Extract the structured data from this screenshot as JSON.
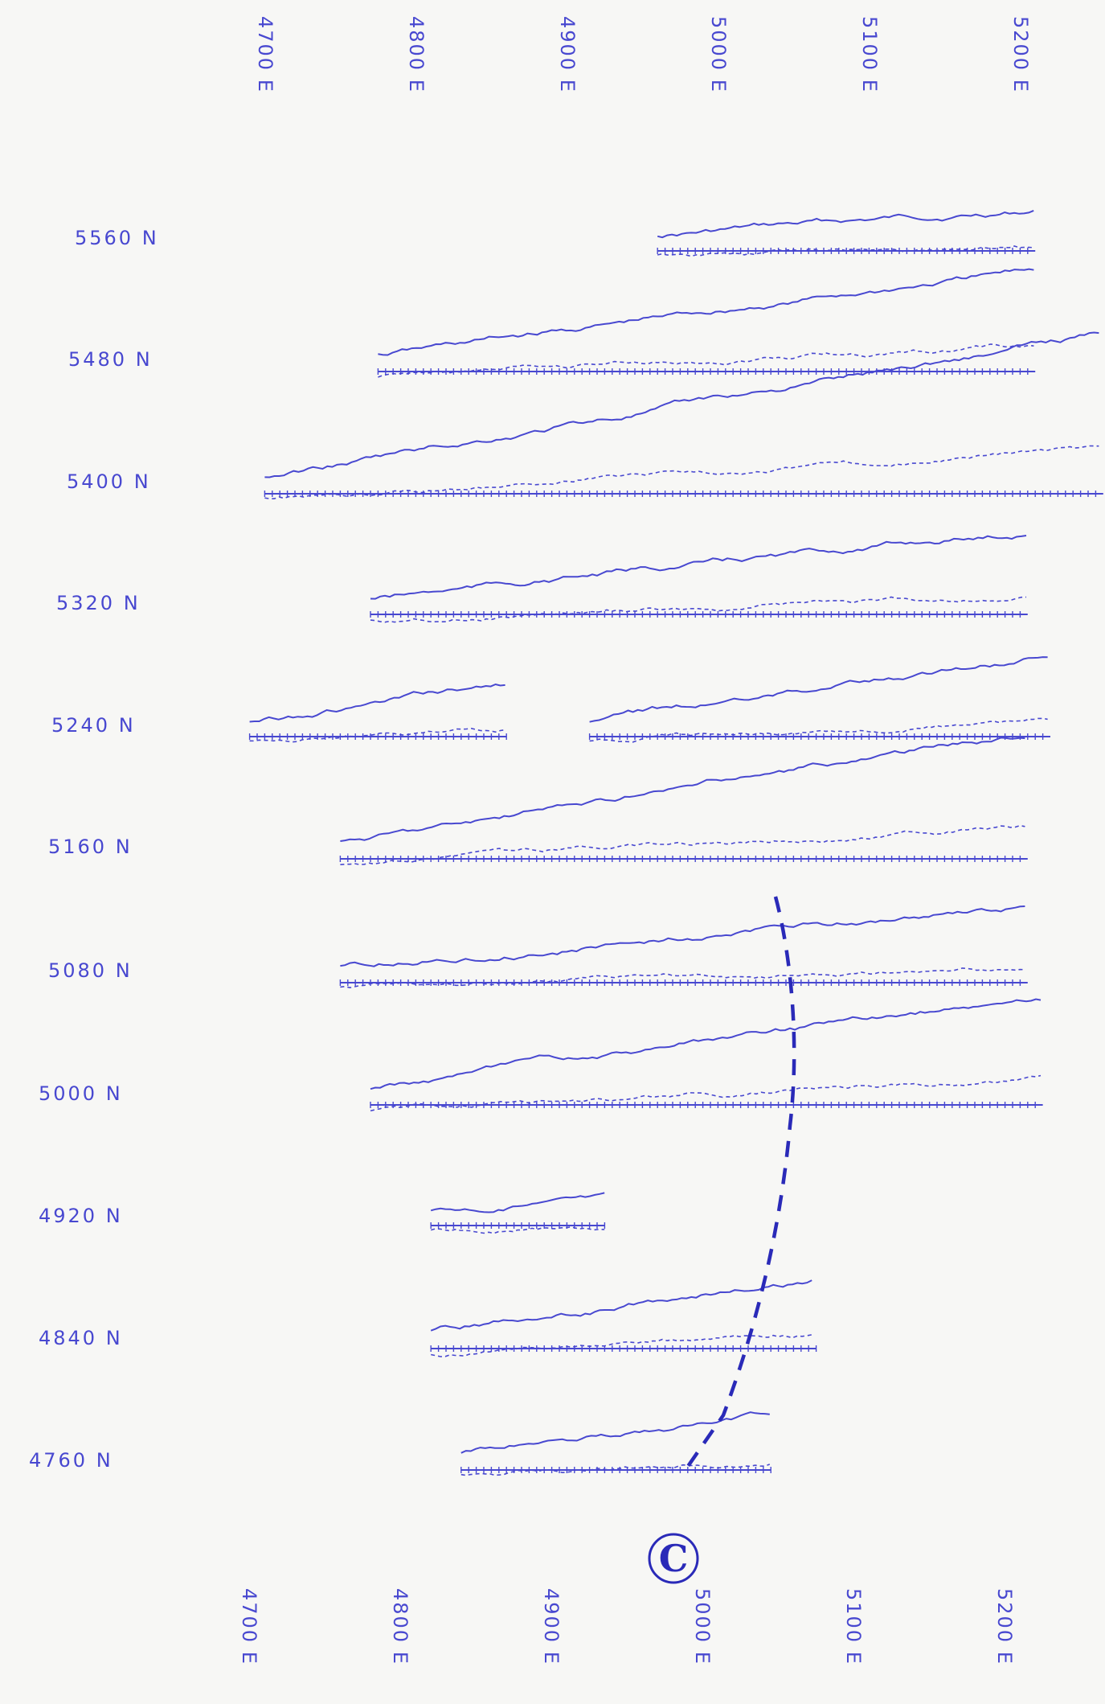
{
  "chart_data": {
    "type": "line",
    "title": "",
    "x_axis": {
      "labels": [
        "4700 E",
        "4800 E",
        "4900 E",
        "5000 E",
        "5100 E",
        "5200 E"
      ],
      "values": [
        4700,
        4800,
        4900,
        5000,
        5100,
        5200
      ],
      "top_and_bottom": true,
      "label_orientation": "rotated 90 degrees"
    },
    "lines": [
      {
        "label": "5560 N",
        "station_range": [
          4965,
          5215
        ]
      },
      {
        "label": "5480 N",
        "station_range": [
          4780,
          5215
        ]
      },
      {
        "label": "5400 N",
        "station_range": [
          4705,
          5260
        ]
      },
      {
        "label": "5320 N",
        "station_range": [
          4775,
          5210
        ]
      },
      {
        "label": "5240 N",
        "station_range": [
          4695,
          5225
        ],
        "gap": [
          4865,
          4920
        ]
      },
      {
        "label": "5160 N",
        "station_range": [
          4755,
          5210
        ]
      },
      {
        "label": "5080 N",
        "station_range": [
          4755,
          5210
        ]
      },
      {
        "label": "5000 N",
        "station_range": [
          4775,
          5220
        ]
      },
      {
        "label": "4920 N",
        "station_range": [
          4815,
          4930
        ]
      },
      {
        "label": "4840 N",
        "station_range": [
          4815,
          5070
        ]
      },
      {
        "label": "4760 N",
        "station_range": [
          4835,
          5040
        ]
      }
    ],
    "annotations": [
      {
        "text": "C",
        "style": "circled"
      }
    ],
    "colors": {
      "ink": "#4848d0",
      "dark": "#2a2ab8",
      "background": "#f7f7f5"
    }
  }
}
